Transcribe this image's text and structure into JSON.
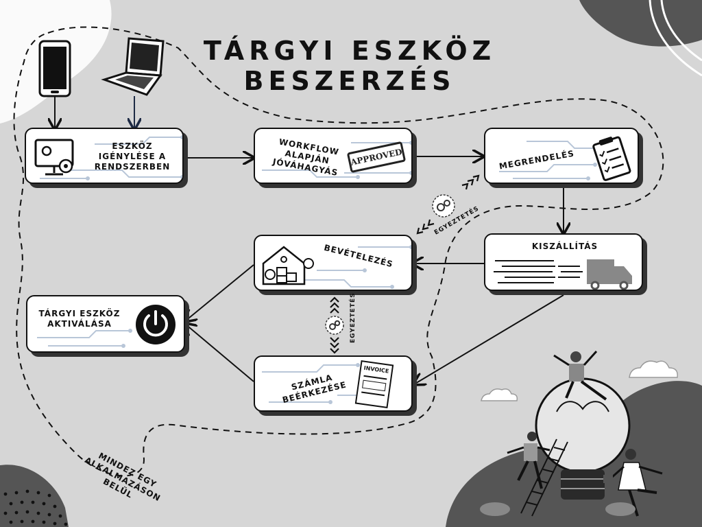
{
  "title": {
    "line1": "TÁRGYI ESZKÖZ",
    "line2": "BESZERZÉS"
  },
  "steps": {
    "request": {
      "line1": "ESZKÖZ",
      "line2": "IGÉNYLÉSE A",
      "line3": "RENDSZERBEN"
    },
    "approval": {
      "line1": "WORKFLOW",
      "line2": "ALAPJÁN",
      "line3": "JÓVÁHAGYÁS",
      "stamp": "APPROVED"
    },
    "order": {
      "label": "MEGRENDELÉS"
    },
    "delivery": {
      "label": "KISZÁLLÍTÁS"
    },
    "receipt": {
      "label": "BEVÉTELEZÉS"
    },
    "invoice": {
      "line1": "SZÁMLA",
      "line2": "BEÉRKEZÉSE",
      "doc": "INVOICE"
    },
    "activation": {
      "line1": "TÁRGYI ESZKÖZ",
      "line2": "AKTIVÁLÁSA"
    }
  },
  "sync_label_1": "EGYEZTETÉS",
  "sync_label_2": "EGYEZTETÉS",
  "footer": {
    "line1": "MINDEZ EGY",
    "line2": "ALKALMAZÁSON",
    "line3": "BELÜL"
  },
  "icons": [
    "phone-icon",
    "laptop-icon",
    "computer-settings-icon",
    "approved-stamp-icon",
    "clipboard-icon",
    "truck-icon",
    "warehouse-icon",
    "invoice-icon",
    "power-icon",
    "sync-gears-icon"
  ],
  "colors": {
    "background": "#d6d6d6",
    "card": "#ffffff",
    "ink": "#111111",
    "circuit": "#b8c6d8",
    "dark_shape": "#555555"
  }
}
